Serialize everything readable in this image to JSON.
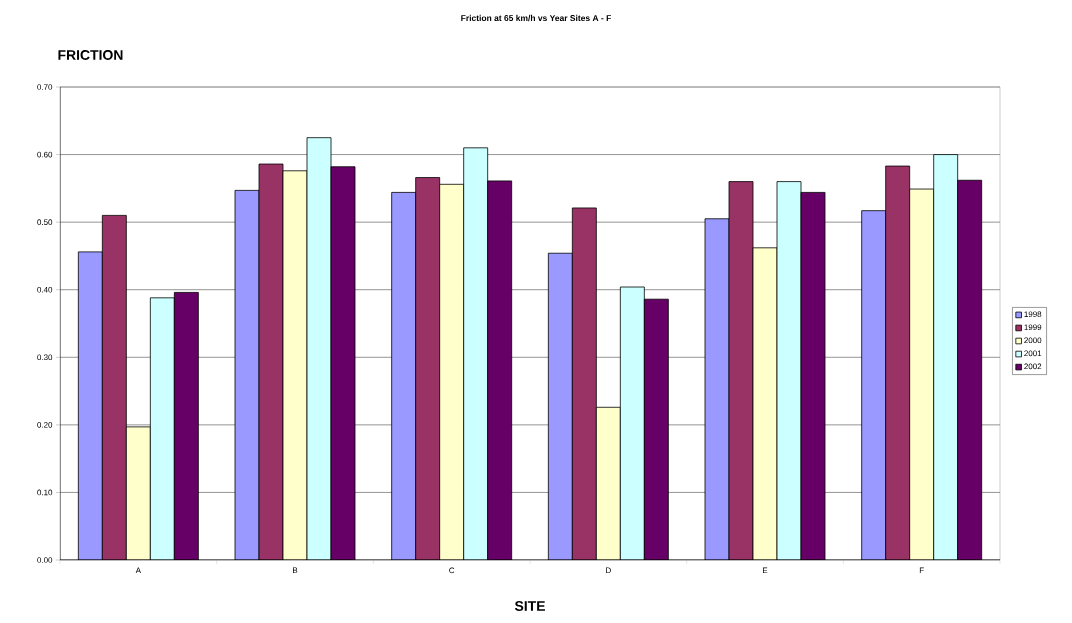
{
  "chart_data": {
    "type": "bar",
    "title": "Friction at 65 km/h vs Year Sites A - F",
    "ylabel": "FRICTION",
    "xlabel": "SITE",
    "categories": [
      "A",
      "B",
      "C",
      "D",
      "E",
      "F"
    ],
    "series": [
      {
        "name": "1998",
        "color": "#9999ff",
        "values": [
          0.456,
          0.547,
          0.544,
          0.454,
          0.505,
          0.517
        ]
      },
      {
        "name": "1999",
        "color": "#993366",
        "values": [
          0.51,
          0.586,
          0.566,
          0.521,
          0.56,
          0.583
        ]
      },
      {
        "name": "2000",
        "color": "#ffffcc",
        "values": [
          0.197,
          0.576,
          0.556,
          0.226,
          0.462,
          0.549
        ]
      },
      {
        "name": "2001",
        "color": "#ccffff",
        "values": [
          0.388,
          0.625,
          0.61,
          0.404,
          0.56,
          0.6
        ]
      },
      {
        "name": "2002",
        "color": "#660066",
        "values": [
          0.396,
          0.582,
          0.561,
          0.386,
          0.544,
          0.562
        ]
      }
    ],
    "ylim": [
      0,
      0.7
    ],
    "yticks": [
      {
        "value": 0,
        "label": "0.00"
      },
      {
        "value": 0.1,
        "label": "0.10"
      },
      {
        "value": 0.2,
        "label": "0.20"
      },
      {
        "value": 0.3,
        "label": "0.30"
      },
      {
        "value": 0.4,
        "label": "0.40"
      },
      {
        "value": 0.5,
        "label": "0.50"
      },
      {
        "value": 0.6,
        "label": "0.60"
      },
      {
        "value": 0.7,
        "label": "0.70"
      }
    ],
    "grid": "y",
    "legend": "right"
  }
}
